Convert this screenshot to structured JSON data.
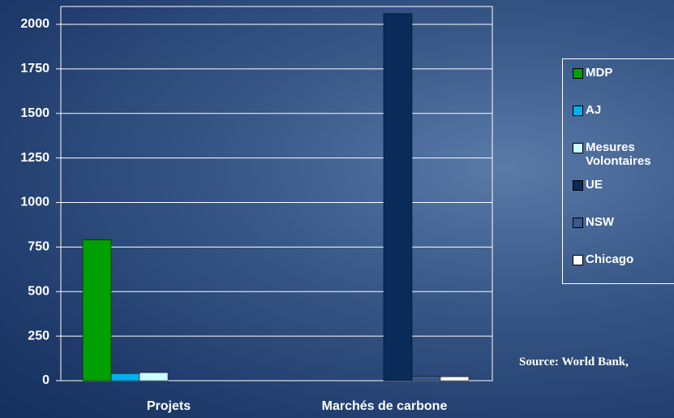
{
  "chart_data": {
    "type": "bar",
    "categories": [
      "Projets",
      "Marchés de carbone"
    ],
    "series": [
      {
        "name": "MDP",
        "color": "#00a000",
        "values": [
          790,
          0
        ]
      },
      {
        "name": "AJ",
        "color": "#00b0f0",
        "values": [
          40,
          0
        ]
      },
      {
        "name": "Mesures Volontaires",
        "color": "#ccffff",
        "values": [
          45,
          0
        ]
      },
      {
        "name": "UE",
        "color": "#0a2a5a",
        "values": [
          0,
          2060
        ]
      },
      {
        "name": "NSW",
        "color": "#3a5a8c",
        "values": [
          0,
          25
        ]
      },
      {
        "name": "Chicago",
        "color": "#ffffff",
        "values": [
          0,
          22
        ]
      }
    ],
    "ylim": [
      0,
      2100
    ],
    "yticks": [
      0,
      250,
      500,
      750,
      1000,
      1250,
      1500,
      1750,
      2000
    ],
    "grid": true,
    "legend": "right",
    "source": "Source: World Bank,"
  }
}
